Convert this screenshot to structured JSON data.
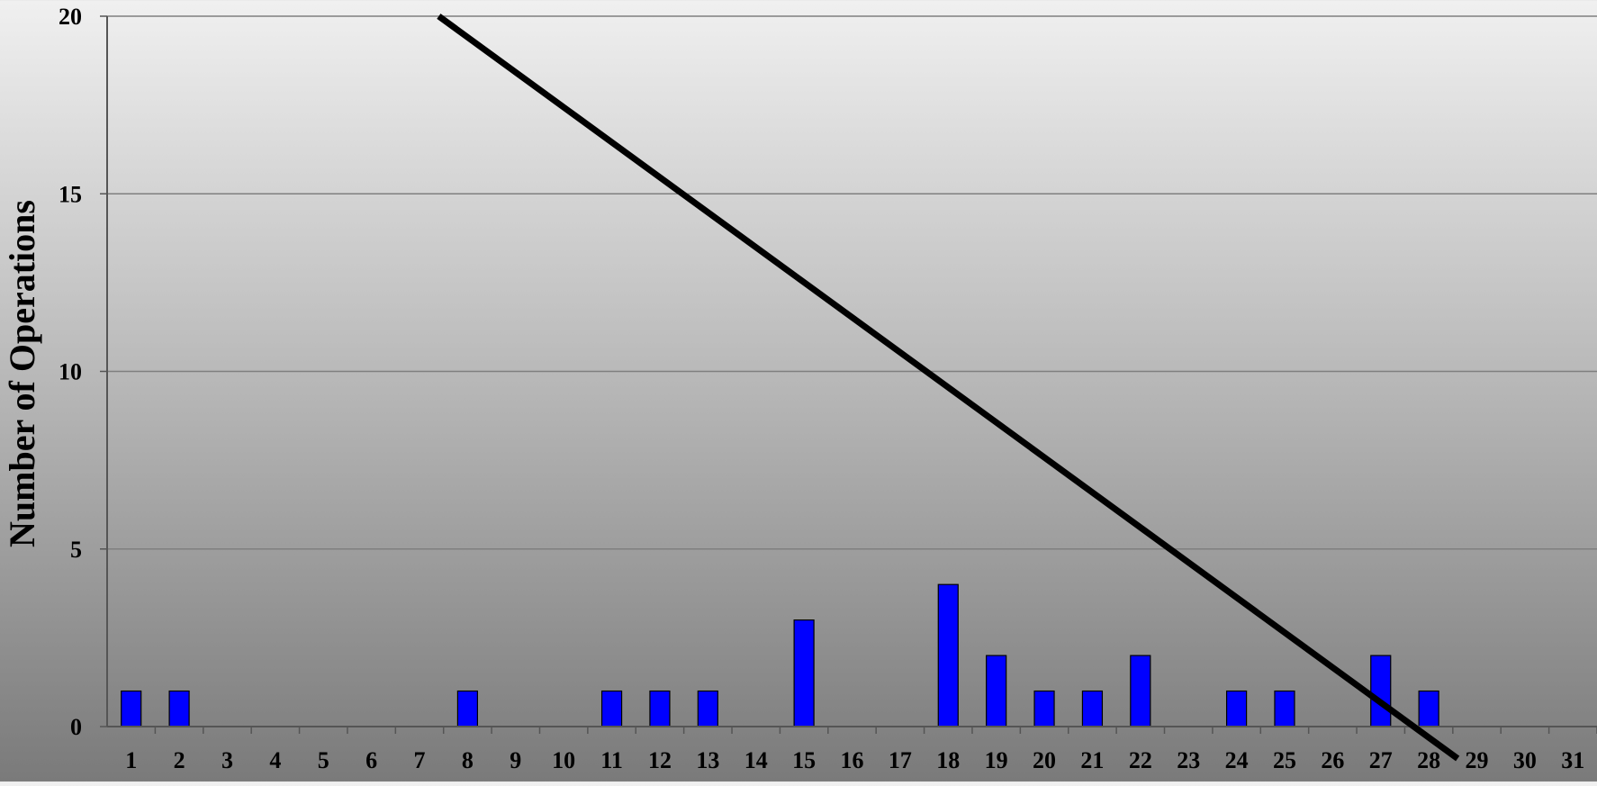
{
  "chart_data": {
    "type": "bar",
    "ylabel": "Number of Operations",
    "xlabel": "",
    "categories": [
      "1",
      "2",
      "3",
      "4",
      "5",
      "6",
      "7",
      "8",
      "9",
      "10",
      "11",
      "12",
      "13",
      "14",
      "15",
      "16",
      "17",
      "18",
      "19",
      "20",
      "21",
      "22",
      "23",
      "24",
      "25",
      "26",
      "27",
      "28",
      "29",
      "30",
      "31"
    ],
    "values": [
      1,
      1,
      0,
      0,
      0,
      0,
      0,
      1,
      0,
      0,
      1,
      1,
      1,
      0,
      3,
      0,
      0,
      4,
      2,
      1,
      1,
      2,
      0,
      1,
      1,
      0,
      2,
      1,
      0,
      0,
      0
    ],
    "ylim": [
      0,
      20
    ],
    "yticks": [
      0,
      5,
      10,
      15,
      20
    ],
    "grid": true,
    "bar_color": "#0000ff",
    "bar_edge_color": "#000000",
    "trend_line": {
      "color": "#000000",
      "x": [
        7.4,
        28.6
      ],
      "y": [
        20,
        -0.9
      ]
    }
  }
}
